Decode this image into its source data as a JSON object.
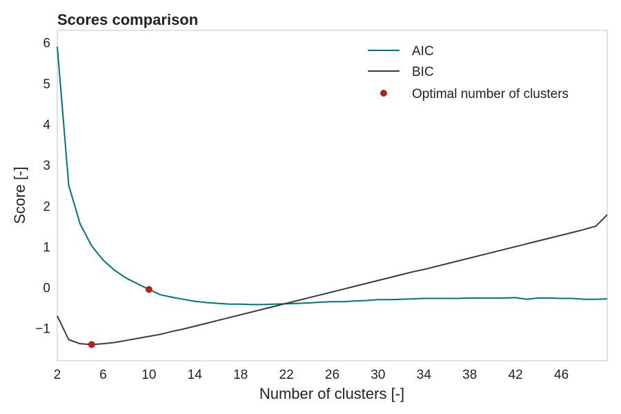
{
  "chart_data": {
    "type": "line",
    "title": "Scores comparison",
    "xlabel": "Number of clusters [-]",
    "ylabel": "Score [-]",
    "xlim": [
      2,
      50
    ],
    "ylim": [
      -1.8,
      6.3
    ],
    "xticks": [
      2,
      6,
      10,
      14,
      18,
      22,
      26,
      30,
      34,
      38,
      42,
      46
    ],
    "xtick_labels": [
      "2",
      "6",
      "10",
      "14",
      "18",
      "22",
      "26",
      "30",
      "34",
      "38",
      "42",
      "46"
    ],
    "yticks": [
      -1,
      0,
      1,
      2,
      3,
      4,
      5,
      6
    ],
    "ytick_labels": [
      "−1",
      "0",
      "1",
      "2",
      "3",
      "4",
      "5",
      "6"
    ],
    "grid": false,
    "legend_position": "top-right",
    "x": [
      2,
      3,
      4,
      5,
      6,
      7,
      8,
      9,
      10,
      11,
      12,
      13,
      14,
      15,
      16,
      17,
      18,
      19,
      20,
      21,
      22,
      23,
      24,
      25,
      26,
      27,
      28,
      29,
      30,
      31,
      32,
      33,
      34,
      35,
      36,
      37,
      38,
      39,
      40,
      41,
      42,
      43,
      44,
      45,
      46,
      47,
      48,
      49,
      50
    ],
    "series": [
      {
        "name": "AIC",
        "color": "#00727a",
        "values": [
          5.9,
          2.5,
          1.55,
          1.02,
          0.67,
          0.42,
          0.23,
          0.09,
          -0.05,
          -0.18,
          -0.24,
          -0.29,
          -0.34,
          -0.37,
          -0.39,
          -0.41,
          -0.41,
          -0.42,
          -0.42,
          -0.41,
          -0.4,
          -0.39,
          -0.38,
          -0.36,
          -0.35,
          -0.35,
          -0.33,
          -0.32,
          -0.3,
          -0.3,
          -0.29,
          -0.28,
          -0.27,
          -0.27,
          -0.27,
          -0.27,
          -0.26,
          -0.26,
          -0.26,
          -0.26,
          -0.25,
          -0.29,
          -0.26,
          -0.26,
          -0.27,
          -0.27,
          -0.29,
          -0.29,
          -0.28
        ]
      },
      {
        "name": "BIC",
        "color": "#3a3a3a",
        "values": [
          -0.7,
          -1.28,
          -1.38,
          -1.4,
          -1.38,
          -1.35,
          -1.3,
          -1.25,
          -1.2,
          -1.15,
          -1.08,
          -1.02,
          -0.95,
          -0.88,
          -0.81,
          -0.74,
          -0.67,
          -0.6,
          -0.53,
          -0.46,
          -0.39,
          -0.32,
          -0.25,
          -0.18,
          -0.11,
          -0.04,
          0.03,
          0.1,
          0.17,
          0.24,
          0.31,
          0.38,
          0.44,
          0.51,
          0.58,
          0.65,
          0.72,
          0.79,
          0.86,
          0.93,
          1.0,
          1.07,
          1.14,
          1.21,
          1.28,
          1.35,
          1.42,
          1.5,
          1.78
        ]
      }
    ],
    "optimal_points": {
      "name": "Optimal number of clusters",
      "color": "#b22222",
      "points": [
        {
          "x": 10,
          "y": -0.05
        },
        {
          "x": 5,
          "y": -1.4
        }
      ]
    }
  }
}
